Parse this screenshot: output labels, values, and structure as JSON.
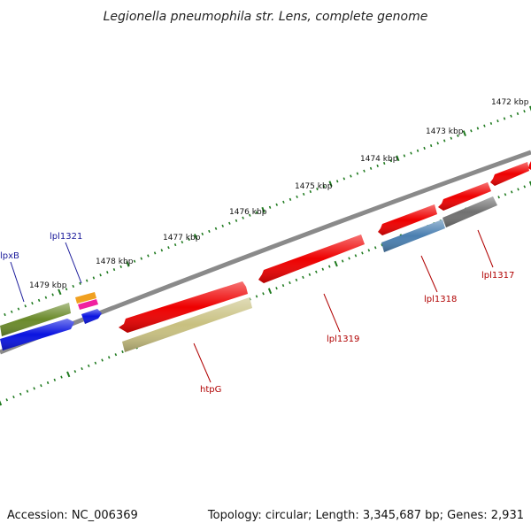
{
  "title": "Legionella pneumophila str. Lens, complete genome",
  "footer": {
    "accession": "Accession: NC_006369",
    "topology": "Topology: circular; Length: 3,345,687 bp; Genes: 2,931"
  },
  "colors": {
    "backbone": "#8a8a8a",
    "tick": "#1f7a1f",
    "red_gene": "#ee0000",
    "olive_gene": "#6a8a2a",
    "khaki_gene": "#c8c080",
    "blue_gene": "#0a14e0",
    "steel_gene": "#4a7fb0",
    "gray_gene": "#707070",
    "orange_gene": "#f0a020",
    "magenta_gene": "#f020a0"
  },
  "kbp_labels": [
    "1472 kbp",
    "1473 kbp",
    "1474 kbp",
    "1475 kbp",
    "1476 kbp",
    "1477 kbp",
    "1478 kbp",
    "1479 kbp"
  ],
  "gene_labels": {
    "lpxB": "lpxB",
    "lpl1321": "lpl1321",
    "htpG": "htpG",
    "lpl1319": "lpl1319",
    "lpl1318": "lpl1318",
    "lpl1317": "lpl1317"
  },
  "genes": [
    {
      "name": "lpxB",
      "color": "olive_gene"
    },
    {
      "name": "lpxB-partner",
      "color": "blue_gene"
    },
    {
      "name": "lpl1321",
      "color": "orange_gene"
    },
    {
      "name": "lpl1321-b",
      "color": "magenta_gene"
    },
    {
      "name": "lpl1321-c",
      "color": "blue_gene"
    },
    {
      "name": "htpG-upper",
      "color": "red_gene"
    },
    {
      "name": "htpG",
      "color": "khaki_gene"
    },
    {
      "name": "lpl1319",
      "color": "red_gene"
    },
    {
      "name": "lpl1318-upper",
      "color": "red_gene"
    },
    {
      "name": "lpl1318",
      "color": "steel_gene"
    },
    {
      "name": "lpl1317-upper",
      "color": "red_gene"
    },
    {
      "name": "lpl1317",
      "color": "gray_gene"
    },
    {
      "name": "edge-red-1",
      "color": "red_gene"
    },
    {
      "name": "edge-red-2",
      "color": "red_gene"
    }
  ]
}
